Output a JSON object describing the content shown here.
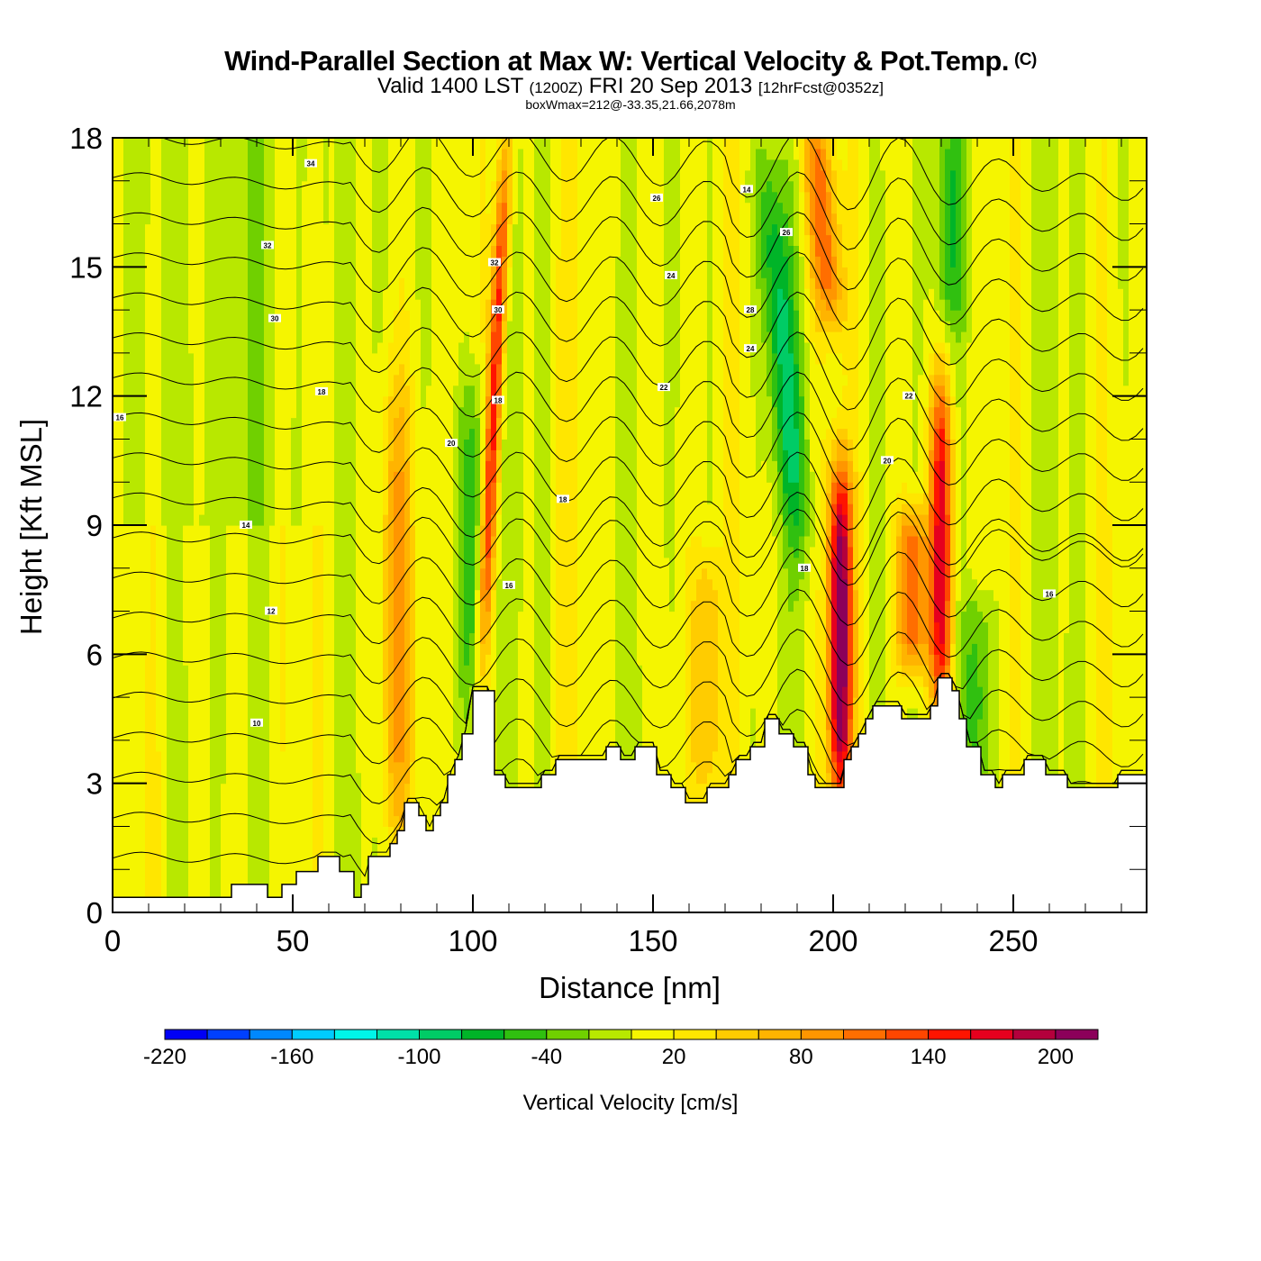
{
  "header": {
    "title": "Wind-Parallel Section at Max W: Vertical Velocity & Pot.Temp.",
    "copyright": "(C)",
    "valid_prefix": "Valid 1400 LST",
    "valid_utc": "(1200Z)",
    "valid_date": "FRI 20 Sep 2013",
    "forecast": "[12hrFcst@0352z]",
    "boxwmax": "boxWmax=212@-33.35,21.66,2078m"
  },
  "chart_data": {
    "type": "heatmap",
    "title": "Wind-Parallel Section at Max W: Vertical Velocity & Pot.Temp.",
    "xlabel": "Distance [nm]",
    "ylabel": "Height [Kft MSL]",
    "xlim": [
      0,
      287
    ],
    "ylim": [
      0,
      18
    ],
    "x_ticks": [
      0,
      50,
      100,
      150,
      200,
      250
    ],
    "x_tick_labels": [
      "0",
      "50",
      "100",
      "150",
      "200",
      "250"
    ],
    "y_ticks": [
      0,
      3,
      6,
      9,
      12,
      15,
      18
    ],
    "y_tick_labels": [
      "0",
      "3",
      "6",
      "9",
      "12",
      "15",
      "18"
    ],
    "x_minor_step": 10,
    "y_minor_step": 1,
    "colorbar": {
      "label": "Vertical Velocity [cm/s]",
      "levels": [
        -220,
        -200,
        -180,
        -160,
        -140,
        -120,
        -100,
        -80,
        -60,
        -40,
        -20,
        0,
        20,
        40,
        60,
        80,
        100,
        120,
        140,
        160,
        180,
        200,
        220
      ],
      "tick_values": [
        -220,
        -160,
        -100,
        -40,
        20,
        80,
        140,
        200
      ],
      "tick_labels": [
        "-220",
        "-160",
        "-100",
        "-40",
        "20",
        "80",
        "140",
        "200"
      ],
      "colors": [
        "#0000f5",
        "#0040ff",
        "#0088ff",
        "#00ccff",
        "#00f5e8",
        "#00e0a8",
        "#00cc66",
        "#00b428",
        "#30c010",
        "#70d000",
        "#b8e800",
        "#f5f500",
        "#ffe600",
        "#ffcc00",
        "#ffb400",
        "#ff9600",
        "#ff6e00",
        "#ff4600",
        "#ff1400",
        "#e6001e",
        "#b4003c",
        "#8c005a"
      ],
      "placement": "bottom"
    },
    "max_w": {
      "value_cm_s": 212,
      "lat": -33.35,
      "lon": 21.66,
      "height_m": 2078
    },
    "terrain_kft": {
      "distance_nm": [
        0,
        33,
        33,
        43,
        43,
        47,
        47,
        51,
        51,
        57,
        57,
        63,
        63,
        67,
        67,
        69,
        69,
        71,
        71,
        77,
        77,
        79,
        79,
        81,
        81,
        85,
        85,
        87,
        87,
        89,
        89,
        91,
        91,
        93,
        93,
        95,
        95,
        97,
        97,
        100,
        100,
        106,
        106,
        109,
        109,
        119,
        119,
        123,
        123,
        125,
        125,
        127,
        127,
        131,
        131,
        137,
        137,
        141,
        141,
        145,
        145,
        151,
        151,
        155,
        155,
        159,
        159,
        163,
        163,
        165,
        165,
        171,
        171,
        173,
        173,
        177,
        177,
        181,
        181,
        185,
        185,
        189,
        189,
        193,
        193,
        195,
        195,
        199,
        199,
        203,
        203,
        205,
        205,
        207,
        207,
        209,
        209,
        211,
        211,
        213,
        213,
        215,
        215,
        219,
        219,
        227,
        227,
        229,
        229,
        233,
        233,
        235,
        235,
        237,
        237,
        241,
        241,
        245,
        245,
        247,
        247,
        253,
        253,
        259,
        259,
        265,
        265,
        279,
        279,
        287
      ],
      "height": [
        0.35,
        0.35,
        0.65,
        0.65,
        0.35,
        0.35,
        0.65,
        0.65,
        0.95,
        0.95,
        1.3,
        1.3,
        0.95,
        0.95,
        0.35,
        0.35,
        0.65,
        0.65,
        1.3,
        1.3,
        1.6,
        1.6,
        1.9,
        1.9,
        2.55,
        2.55,
        2.25,
        2.25,
        1.9,
        1.9,
        2.25,
        2.25,
        2.55,
        2.55,
        3.2,
        3.2,
        3.55,
        3.55,
        4.15,
        4.15,
        5.15,
        5.15,
        3.2,
        3.2,
        2.9,
        2.9,
        3.2,
        3.2,
        3.55,
        3.55,
        3.55,
        3.55,
        3.55,
        3.55,
        3.55,
        3.55,
        3.85,
        3.85,
        3.55,
        3.55,
        3.85,
        3.85,
        3.2,
        3.2,
        2.9,
        2.9,
        2.55,
        2.55,
        2.55,
        2.55,
        2.9,
        2.9,
        3.2,
        3.2,
        3.55,
        3.55,
        3.85,
        3.85,
        4.5,
        4.5,
        4.15,
        4.15,
        3.85,
        3.85,
        3.2,
        3.2,
        2.9,
        2.9,
        2.9,
        2.9,
        3.55,
        3.55,
        3.85,
        3.85,
        4.15,
        4.15,
        4.5,
        4.5,
        4.8,
        4.8,
        4.8,
        4.8,
        4.8,
        4.8,
        4.5,
        4.5,
        4.8,
        4.8,
        5.45,
        5.45,
        5.15,
        5.15,
        4.5,
        4.5,
        3.85,
        3.85,
        3.2,
        3.2,
        2.9,
        2.9,
        3.2,
        3.2,
        3.55,
        3.55,
        3.2,
        3.2,
        2.9,
        2.9,
        3.2,
        3.2
      ]
    },
    "w_features_cm_s": [
      {
        "distance_nm": 106,
        "height_kft": [
          6,
          18
        ],
        "peak": 150,
        "tilt": "upward-left"
      },
      {
        "distance_nm": 79,
        "height_kft": [
          2,
          12
        ],
        "peak": 70
      },
      {
        "distance_nm": 100,
        "height_kft": [
          5,
          12
        ],
        "peak": -60
      },
      {
        "distance_nm": 187,
        "height_kft": [
          9,
          17
        ],
        "peak": -80
      },
      {
        "distance_nm": 197,
        "height_kft": [
          14,
          18
        ],
        "peak": 100
      },
      {
        "distance_nm": 202,
        "height_kft": [
          3,
          10
        ],
        "peak": 212
      },
      {
        "distance_nm": 230,
        "height_kft": [
          5,
          12
        ],
        "peak": 160
      },
      {
        "distance_nm": 222,
        "height_kft": [
          6,
          9
        ],
        "peak": 120
      },
      {
        "distance_nm": 240,
        "height_kft": [
          3,
          7
        ],
        "peak": -60
      },
      {
        "distance_nm": 233,
        "height_kft": [
          14,
          18
        ],
        "peak": -50
      },
      {
        "distance_nm": 165,
        "height_kft": [
          3,
          8
        ],
        "peak": 60
      }
    ],
    "isentrope_labels": [
      "34",
      "32",
      "30",
      "18",
      "16",
      "14",
      "12",
      "10",
      "32",
      "30",
      "18",
      "26",
      "24",
      "22",
      "20",
      "18",
      "16",
      "14",
      "28",
      "26",
      "24",
      "22",
      "20",
      "18",
      "16"
    ]
  }
}
